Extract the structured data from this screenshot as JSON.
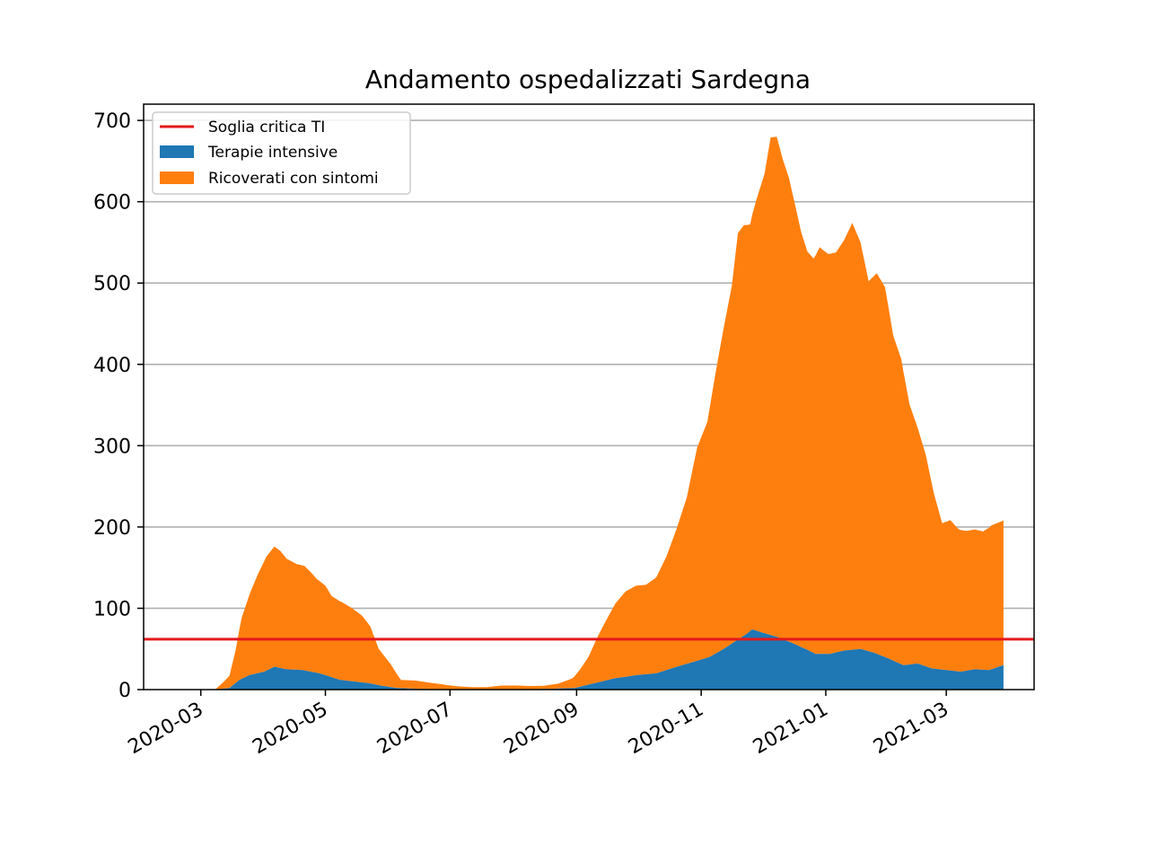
{
  "chart_data": {
    "type": "area",
    "title": "Andamento ospedalizzati Sardegna",
    "xlabel": "",
    "ylabel": "",
    "ylim": [
      0,
      720
    ],
    "xlim": [
      "2020-02-02",
      "2021-04-13"
    ],
    "x_ticks": [
      "2020-03-01",
      "2020-05-01",
      "2020-07-01",
      "2020-09-01",
      "2020-11-01",
      "2021-01-01",
      "2021-03-01"
    ],
    "x_tick_labels": [
      "2020-03",
      "2020-05",
      "2020-07",
      "2020-09",
      "2020-11",
      "2021-01",
      "2021-03"
    ],
    "y_ticks": [
      0,
      100,
      200,
      300,
      400,
      500,
      600,
      700
    ],
    "y_tick_labels": [
      "0",
      "100",
      "200",
      "300",
      "400",
      "500",
      "600",
      "700"
    ],
    "grid": "horizontal",
    "legend_placement": "top-left",
    "threshold": {
      "name": "Soglia critica TI",
      "value": 62,
      "color": "#e41a1c"
    },
    "stacked_series": [
      {
        "name": "Terapie intensive",
        "color": "#1f77b4",
        "points": [
          [
            "2020-03-08",
            0
          ],
          [
            "2020-03-15",
            2
          ],
          [
            "2020-03-20",
            12
          ],
          [
            "2020-03-25",
            18
          ],
          [
            "2020-04-01",
            22
          ],
          [
            "2020-04-06",
            28
          ],
          [
            "2020-04-12",
            25
          ],
          [
            "2020-04-20",
            24
          ],
          [
            "2020-04-28",
            20
          ],
          [
            "2020-05-02",
            17
          ],
          [
            "2020-05-08",
            12
          ],
          [
            "2020-05-15",
            10
          ],
          [
            "2020-05-22",
            8
          ],
          [
            "2020-05-28",
            5
          ],
          [
            "2020-06-05",
            2
          ],
          [
            "2020-06-15",
            1
          ],
          [
            "2020-06-30",
            0
          ],
          [
            "2020-07-31",
            0
          ],
          [
            "2020-08-20",
            1
          ],
          [
            "2020-08-31",
            2
          ],
          [
            "2020-09-10",
            8
          ],
          [
            "2020-09-20",
            14
          ],
          [
            "2020-10-01",
            18
          ],
          [
            "2020-10-10",
            20
          ],
          [
            "2020-10-20",
            28
          ],
          [
            "2020-10-28",
            34
          ],
          [
            "2020-11-05",
            40
          ],
          [
            "2020-11-12",
            50
          ],
          [
            "2020-11-18",
            60
          ],
          [
            "2020-11-23",
            68
          ],
          [
            "2020-11-26",
            74
          ],
          [
            "2020-12-01",
            70
          ],
          [
            "2020-12-08",
            65
          ],
          [
            "2020-12-15",
            58
          ],
          [
            "2020-12-22",
            50
          ],
          [
            "2020-12-27",
            44
          ],
          [
            "2021-01-03",
            44
          ],
          [
            "2021-01-10",
            48
          ],
          [
            "2021-01-18",
            50
          ],
          [
            "2021-01-25",
            45
          ],
          [
            "2021-02-01",
            38
          ],
          [
            "2021-02-08",
            30
          ],
          [
            "2021-02-15",
            32
          ],
          [
            "2021-02-22",
            26
          ],
          [
            "2021-03-01",
            24
          ],
          [
            "2021-03-08",
            22
          ],
          [
            "2021-03-15",
            25
          ],
          [
            "2021-03-22",
            24
          ],
          [
            "2021-03-29",
            30
          ]
        ]
      },
      {
        "name": "Ricoverati con sintomi",
        "color": "#ff7f0e",
        "points": [
          [
            "2020-03-08",
            0
          ],
          [
            "2020-03-12",
            8
          ],
          [
            "2020-03-15",
            15
          ],
          [
            "2020-03-18",
            40
          ],
          [
            "2020-03-21",
            75
          ],
          [
            "2020-03-25",
            100
          ],
          [
            "2020-03-29",
            122
          ],
          [
            "2020-04-02",
            140
          ],
          [
            "2020-04-06",
            148
          ],
          [
            "2020-04-09",
            144
          ],
          [
            "2020-04-12",
            136
          ],
          [
            "2020-04-17",
            130
          ],
          [
            "2020-04-21",
            128
          ],
          [
            "2020-04-24",
            122
          ],
          [
            "2020-04-27",
            115
          ],
          [
            "2020-05-01",
            110
          ],
          [
            "2020-05-04",
            100
          ],
          [
            "2020-05-09",
            96
          ],
          [
            "2020-05-14",
            90
          ],
          [
            "2020-05-19",
            82
          ],
          [
            "2020-05-23",
            70
          ],
          [
            "2020-05-27",
            45
          ],
          [
            "2020-06-02",
            28
          ],
          [
            "2020-06-07",
            10
          ],
          [
            "2020-06-14",
            10
          ],
          [
            "2020-06-21",
            8
          ],
          [
            "2020-06-28",
            6
          ],
          [
            "2020-07-05",
            4
          ],
          [
            "2020-07-12",
            3
          ],
          [
            "2020-07-19",
            3
          ],
          [
            "2020-07-26",
            5
          ],
          [
            "2020-08-02",
            5
          ],
          [
            "2020-08-09",
            4
          ],
          [
            "2020-08-16",
            4
          ],
          [
            "2020-08-23",
            6
          ],
          [
            "2020-08-30",
            12
          ],
          [
            "2020-09-03",
            22
          ],
          [
            "2020-09-07",
            35
          ],
          [
            "2020-09-11",
            55
          ],
          [
            "2020-09-15",
            72
          ],
          [
            "2020-09-20",
            92
          ],
          [
            "2020-09-25",
            105
          ],
          [
            "2020-09-30",
            110
          ],
          [
            "2020-10-05",
            110
          ],
          [
            "2020-10-10",
            118
          ],
          [
            "2020-10-15",
            140
          ],
          [
            "2020-10-20",
            170
          ],
          [
            "2020-10-25",
            205
          ],
          [
            "2020-10-30",
            262
          ],
          [
            "2020-11-04",
            290
          ],
          [
            "2020-11-08",
            345
          ],
          [
            "2020-11-12",
            395
          ],
          [
            "2020-11-16",
            440
          ],
          [
            "2020-11-19",
            500
          ],
          [
            "2020-11-22",
            505
          ],
          [
            "2020-11-25",
            500
          ],
          [
            "2020-11-28",
            530
          ],
          [
            "2020-12-02",
            565
          ],
          [
            "2020-12-05",
            612
          ],
          [
            "2020-12-08",
            615
          ],
          [
            "2020-12-11",
            590
          ],
          [
            "2020-12-14",
            570
          ],
          [
            "2020-12-17",
            540
          ],
          [
            "2020-12-20",
            510
          ],
          [
            "2020-12-23",
            490
          ],
          [
            "2020-12-26",
            485
          ],
          [
            "2020-12-29",
            500
          ],
          [
            "2021-01-02",
            492
          ],
          [
            "2021-01-06",
            492
          ],
          [
            "2021-01-10",
            505
          ],
          [
            "2021-01-14",
            525
          ],
          [
            "2021-01-18",
            500
          ],
          [
            "2021-01-22",
            455
          ],
          [
            "2021-01-26",
            468
          ],
          [
            "2021-01-30",
            455
          ],
          [
            "2021-02-03",
            400
          ],
          [
            "2021-02-07",
            375
          ],
          [
            "2021-02-11",
            320
          ],
          [
            "2021-02-15",
            290
          ],
          [
            "2021-02-19",
            260
          ],
          [
            "2021-02-23",
            215
          ],
          [
            "2021-02-27",
            180
          ],
          [
            "2021-03-03",
            185
          ],
          [
            "2021-03-07",
            175
          ],
          [
            "2021-03-11",
            172
          ],
          [
            "2021-03-15",
            172
          ],
          [
            "2021-03-19",
            170
          ],
          [
            "2021-03-23",
            177
          ],
          [
            "2021-03-29",
            178
          ]
        ]
      }
    ]
  }
}
